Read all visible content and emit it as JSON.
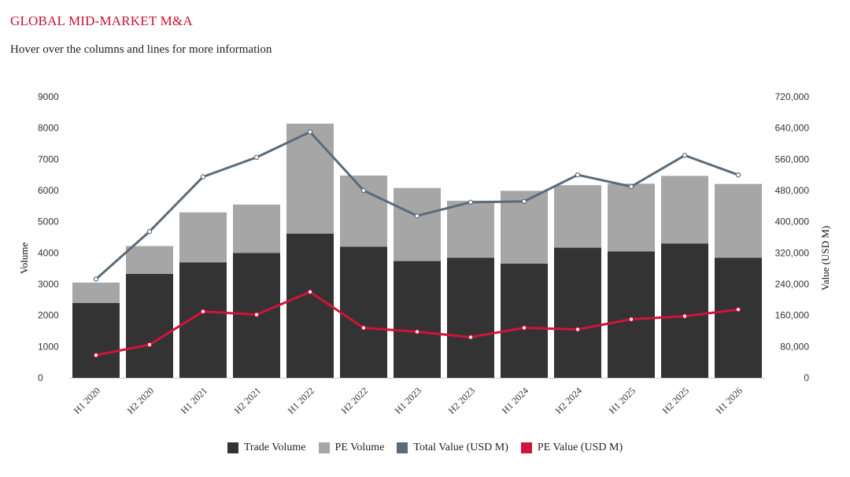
{
  "header": {
    "title": "GLOBAL MID-MARKET M&A",
    "subtitle": "Hover over the columns and lines for more information"
  },
  "chart_data": {
    "type": "bar",
    "categories": [
      "H1 2020",
      "H2 2020",
      "H1 2021",
      "H2 2021",
      "H1 2022",
      "H2 2022",
      "H1 2023",
      "H2 2023",
      "H1 2024",
      "H2 2024",
      "H1 2025",
      "H2 2025",
      "H1 2026"
    ],
    "stacked_series": [
      {
        "name": "Trade Volume",
        "color": "#333333",
        "values": [
          2400,
          3330,
          3700,
          4000,
          4620,
          4200,
          3740,
          3850,
          3660,
          4170,
          4050,
          4300,
          3850
        ]
      },
      {
        "name": "PE Volume",
        "color": "#a6a6a6",
        "values": [
          650,
          890,
          1600,
          1550,
          3520,
          2280,
          2340,
          1820,
          2330,
          2000,
          2170,
          2170,
          2360
        ]
      }
    ],
    "line_series": [
      {
        "name": "Total Value (USD M)",
        "color": "#5a6b7b",
        "values": [
          253000,
          375000,
          515000,
          565000,
          630000,
          480000,
          415000,
          450000,
          452000,
          520000,
          490000,
          570000,
          520000
        ]
      },
      {
        "name": "PE Value (USD M)",
        "color": "#d0143a",
        "values": [
          58000,
          85000,
          170000,
          162000,
          220000,
          128000,
          118000,
          104000,
          128000,
          124000,
          150000,
          158000,
          175000
        ]
      }
    ],
    "y_left": {
      "title": "Volume",
      "min": 0,
      "max": 9000,
      "ticks": [
        "0",
        "1000",
        "2000",
        "3000",
        "4000",
        "5000",
        "6000",
        "7000",
        "8000",
        "9000"
      ]
    },
    "y_right": {
      "title": "Value (USD M)",
      "min": 0,
      "max": 720000,
      "ticks": [
        "0",
        "80,000",
        "160,000",
        "240,000",
        "320,000",
        "400,000",
        "480,000",
        "560,000",
        "640,000",
        "720,000"
      ]
    },
    "legend": [
      "Trade Volume",
      "PE Volume",
      "Total Value (USD M)",
      "PE Value (USD M)"
    ],
    "legend_position": "bottom",
    "grid": false
  }
}
